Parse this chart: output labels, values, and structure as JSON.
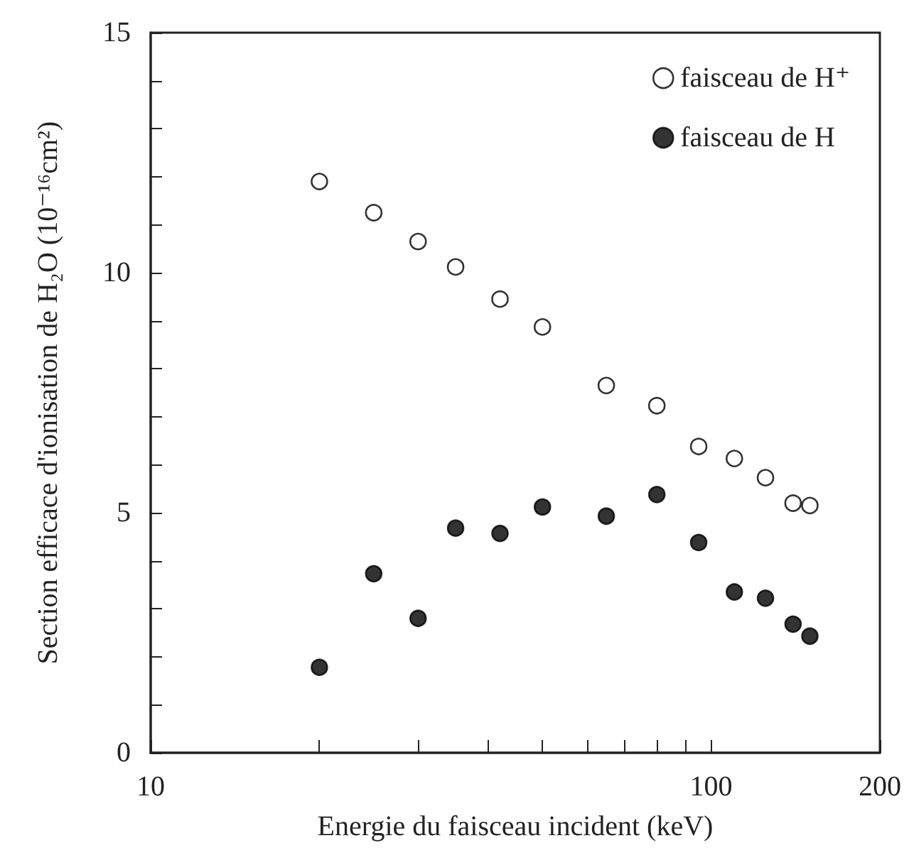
{
  "chart_data": {
    "type": "scatter",
    "xlabel": "Energie du faisceau incident (keV)",
    "ylabel": "Section efficace d'ionisation de H₂O (10⁻¹⁶cm²)",
    "x": [
      20,
      25,
      30,
      35,
      42,
      50,
      65,
      80,
      95,
      110,
      125,
      140,
      150
    ],
    "series": [
      {
        "name": "faisceau de H⁺",
        "color": "#ffffff",
        "values": [
          11.9,
          11.25,
          10.65,
          10.12,
          9.45,
          8.87,
          7.65,
          7.23,
          6.38,
          6.13,
          5.73,
          5.2,
          5.15
        ]
      },
      {
        "name": "faisceau de H",
        "color": "#000000",
        "values": [
          1.78,
          3.73,
          2.8,
          4.68,
          4.57,
          5.12,
          4.93,
          5.38,
          4.38,
          3.35,
          3.22,
          2.68,
          2.43
        ]
      }
    ],
    "log": "x",
    "xlim": [
      10,
      200
    ],
    "xticks": [
      10,
      {
        "value": 20,
        "label": null
      },
      {
        "value": 30,
        "label": null
      },
      {
        "value": 40,
        "label": null
      },
      {
        "value": 50,
        "label": null
      },
      {
        "value": 60,
        "label": null
      },
      {
        "value": 70,
        "label": null
      },
      {
        "value": 80,
        "label": null
      },
      {
        "value": 90,
        "label": null
      },
      100,
      200
    ],
    "ylim": [
      0,
      15
    ],
    "yticks": [
      0,
      {
        "value": 1,
        "label": null
      },
      {
        "value": 2,
        "label": null
      },
      {
        "value": 3,
        "label": null
      },
      {
        "value": 4,
        "label": null
      },
      5,
      {
        "value": 6,
        "label": null
      },
      {
        "value": 7,
        "label": null
      },
      {
        "value": 8,
        "label": null
      },
      {
        "value": 9,
        "label": null
      },
      10,
      {
        "value": 11,
        "label": null
      },
      {
        "value": 12,
        "label": null
      },
      {
        "value": 13,
        "label": null
      },
      {
        "value": 14,
        "label": null
      },
      15
    ],
    "grid": false,
    "legend": "top right",
    "marker": "circle"
  }
}
